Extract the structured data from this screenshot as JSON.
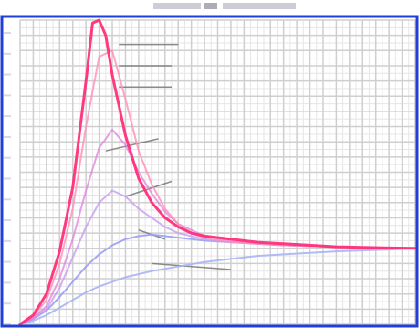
{
  "colors": {
    "frame": "#1f3fd8",
    "grid": "#cfcfcf",
    "grid_minor": "#e6e6e6",
    "tick_mark": "#d8d8e8",
    "leader": "#777777",
    "title_smudge": "#b8b8c8",
    "title_smudge_dark": "#8a8a9a",
    "background": "#ffffff"
  },
  "chart_data": {
    "type": "line",
    "title": "",
    "xlabel": "",
    "ylabel": "",
    "xlim": [
      0,
      30
    ],
    "ylim": [
      0,
      100
    ],
    "grid": true,
    "legend": "none",
    "series": [
      {
        "color": "#ff2f7a",
        "width": 3,
        "opacity": 0.95,
        "x": [
          0,
          1,
          2,
          3,
          4,
          5,
          5.5,
          6,
          6.5,
          7,
          8,
          9,
          10,
          11,
          12,
          13,
          14,
          16,
          18,
          20,
          22,
          24,
          26,
          28,
          30
        ],
        "y": [
          0,
          3,
          10,
          24,
          45,
          80,
          99,
          100,
          95,
          82,
          62,
          48,
          40,
          35,
          32,
          30,
          29,
          28,
          27,
          26.5,
          26,
          25.5,
          25.3,
          25.1,
          25
        ]
      },
      {
        "color": "#ff8fb8",
        "width": 2,
        "opacity": 0.8,
        "x": [
          0,
          1,
          2,
          3,
          4,
          5,
          6,
          7,
          8,
          9,
          10,
          11,
          12,
          13,
          14,
          16,
          18,
          20,
          24,
          30
        ],
        "y": [
          0,
          2.5,
          8,
          20,
          38,
          65,
          88,
          90,
          74,
          57,
          46,
          38,
          33,
          30,
          28.5,
          27,
          26.5,
          26,
          25.5,
          25
        ]
      },
      {
        "color": "#e27fe0",
        "width": 2,
        "opacity": 0.75,
        "x": [
          0,
          1,
          2,
          3,
          4,
          5,
          6,
          7,
          8,
          9,
          10,
          11,
          12,
          14,
          16,
          18,
          20,
          24,
          30
        ],
        "y": [
          0,
          2,
          6,
          15,
          28,
          44,
          58,
          64,
          59,
          50,
          43,
          37,
          33,
          29,
          27.5,
          26.5,
          26,
          25.5,
          25
        ]
      },
      {
        "color": "#c89cf0",
        "width": 2,
        "opacity": 0.8,
        "x": [
          0,
          1,
          2,
          3,
          4,
          5,
          6,
          7,
          8,
          9,
          10,
          11,
          12,
          14,
          16,
          18,
          20,
          24,
          30
        ],
        "y": [
          0,
          2,
          5,
          12,
          22,
          32,
          40,
          44,
          42,
          38,
          35,
          32,
          30,
          28,
          27,
          26.5,
          26,
          25.5,
          25
        ]
      },
      {
        "color": "#9aa0f2",
        "width": 2,
        "opacity": 0.9,
        "x": [
          0,
          1,
          2,
          3,
          4,
          5,
          6,
          7,
          8,
          9,
          10,
          11,
          12,
          14,
          16,
          18,
          20,
          22,
          24,
          26,
          28,
          30
        ],
        "y": [
          0,
          1.8,
          4.5,
          9,
          14,
          19,
          23,
          26,
          28,
          29,
          29.5,
          29,
          28.5,
          27.5,
          27,
          26.5,
          26,
          25.7,
          25.5,
          25.3,
          25.1,
          25
        ]
      },
      {
        "color": "#a8b4f4",
        "width": 2,
        "opacity": 0.9,
        "x": [
          0,
          1,
          2,
          3,
          4,
          5,
          6,
          7,
          8,
          10,
          12,
          14,
          16,
          18,
          20,
          22,
          24,
          26,
          28,
          30
        ],
        "y": [
          0,
          1.2,
          3,
          5.5,
          8,
          10.5,
          12.5,
          14,
          15.5,
          17.5,
          19,
          20.5,
          21.5,
          22.5,
          23,
          23.5,
          24,
          24.3,
          24.6,
          25
        ]
      }
    ],
    "leaders": [
      {
        "from": [
          7.5,
          92
        ],
        "to": [
          12,
          92
        ]
      },
      {
        "from": [
          7.5,
          85
        ],
        "to": [
          11.5,
          85
        ]
      },
      {
        "from": [
          7.5,
          78
        ],
        "to": [
          11.5,
          78
        ]
      },
      {
        "from": [
          6.5,
          57
        ],
        "to": [
          10.5,
          61
        ]
      },
      {
        "from": [
          8,
          42
        ],
        "to": [
          11.5,
          47
        ]
      },
      {
        "from": [
          9,
          31
        ],
        "to": [
          11,
          28
        ]
      },
      {
        "from": [
          10,
          20
        ],
        "to": [
          16,
          18
        ]
      }
    ]
  }
}
